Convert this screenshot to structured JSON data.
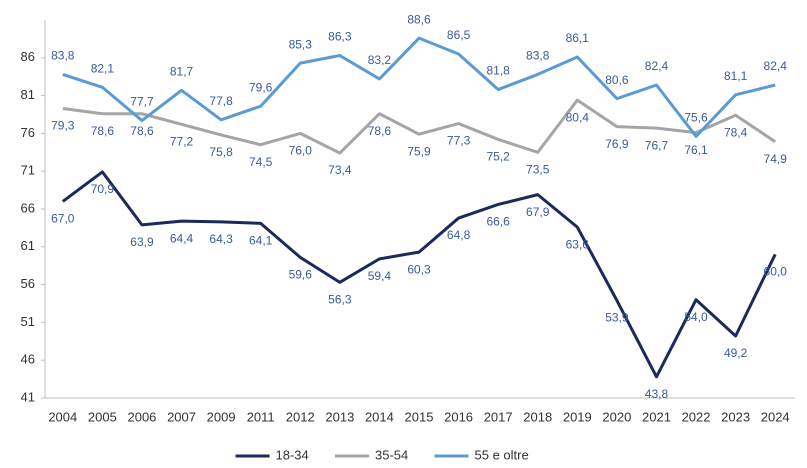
{
  "chart_data": {
    "type": "line",
    "categories": [
      "2004",
      "2005",
      "2006",
      "2007",
      "2009",
      "2011",
      "2012",
      "2013",
      "2014",
      "2015",
      "2016",
      "2017",
      "2018",
      "2019",
      "2020",
      "2021",
      "2022",
      "2023",
      "2024"
    ],
    "series": [
      {
        "name": "18-34",
        "color": "#1b2a5c",
        "values": [
          67.0,
          70.9,
          63.9,
          64.4,
          64.3,
          64.1,
          59.6,
          56.3,
          59.4,
          60.3,
          64.8,
          66.6,
          67.9,
          63.6,
          53.9,
          43.8,
          54.0,
          49.2,
          60.0
        ],
        "value_labels": [
          "67,0",
          "70,9",
          "63,9",
          "64,4",
          "64,3",
          "64,1",
          "59,6",
          "56,3",
          "59,4",
          "60,3",
          "64,8",
          "66,6",
          "67,9",
          "63,6",
          "53,9",
          "43,8",
          "54,0",
          "49,2",
          "60,0"
        ]
      },
      {
        "name": "35-54",
        "color": "#a5a5a5",
        "values": [
          79.3,
          78.6,
          78.6,
          77.2,
          75.8,
          74.5,
          76.0,
          73.4,
          78.6,
          75.9,
          77.3,
          75.2,
          73.5,
          80.4,
          76.9,
          76.7,
          76.1,
          78.4,
          74.9
        ],
        "value_labels": [
          "79,3",
          "78,6",
          "78,6",
          "77,2",
          "75,8",
          "74,5",
          "76,0",
          "73,4",
          "78,6",
          "75,9",
          "77,3",
          "75,2",
          "73,5",
          "80,4",
          "76,9",
          "76,7",
          "76,1",
          "78,4",
          "74,9"
        ]
      },
      {
        "name": "55 e oltre",
        "color": "#5b9bd5",
        "values": [
          83.8,
          82.1,
          77.7,
          81.7,
          77.8,
          79.6,
          85.3,
          86.3,
          83.2,
          88.6,
          86.5,
          81.8,
          83.8,
          86.1,
          80.6,
          82.4,
          75.6,
          81.1,
          82.4
        ],
        "value_labels": [
          "83,8",
          "82,1",
          "77,7",
          "81,7",
          "77,8",
          "79,6",
          "85,3",
          "86,3",
          "83,2",
          "88,6",
          "86,5",
          "81,8",
          "83,8",
          "86,1",
          "80,6",
          "82,4",
          "75,6",
          "81,1",
          "82,4"
        ]
      }
    ],
    "ylim": [
      41,
      91
    ],
    "yticks": [
      41,
      46,
      51,
      56,
      61,
      66,
      71,
      76,
      81,
      86
    ],
    "grid": false,
    "legend": "bottom"
  }
}
